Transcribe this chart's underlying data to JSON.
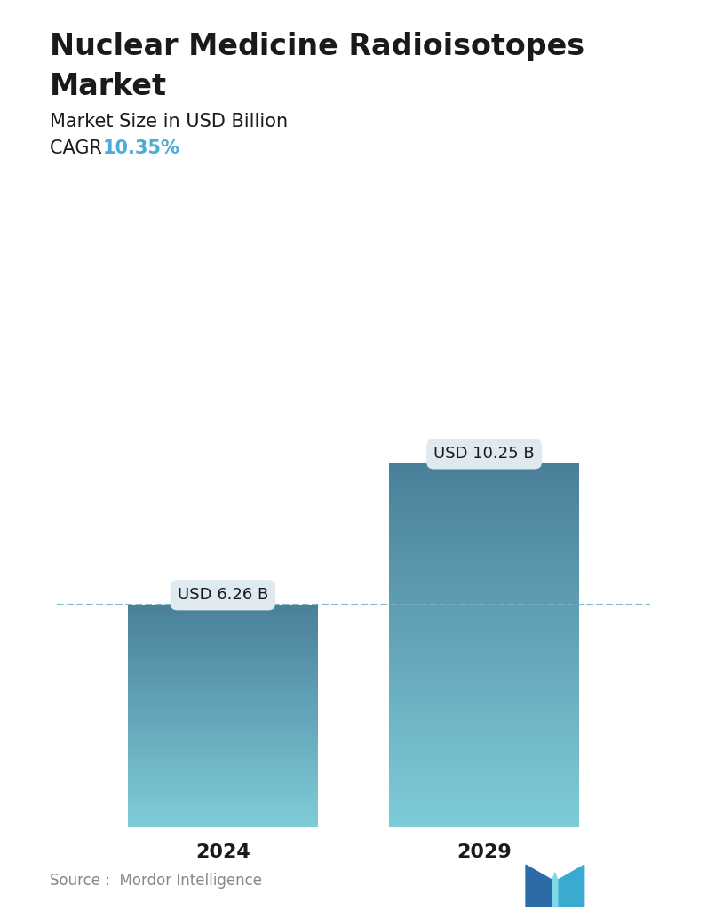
{
  "title_line1": "Nuclear Medicine Radioisotopes",
  "title_line2": "Market",
  "subtitle": "Market Size in USD Billion",
  "cagr_label": "CAGR  ",
  "cagr_value": "10.35%",
  "cagr_color": "#4BACD6",
  "source_text": "Source :  Mordor Intelligence",
  "categories": [
    "2024",
    "2029"
  ],
  "values": [
    6.26,
    10.25
  ],
  "labels": [
    "USD 6.26 B",
    "USD 10.25 B"
  ],
  "bar_color_top": "#4A7F9A",
  "bar_color_bottom": "#7ECCD8",
  "dashed_line_color": "#7AAFC4",
  "background_color": "#FFFFFF",
  "title_fontsize": 24,
  "subtitle_fontsize": 15,
  "cagr_fontsize": 15,
  "label_fontsize": 13,
  "tick_fontsize": 16,
  "source_fontsize": 12,
  "ymax": 13.5,
  "tooltip_bg": "#DEE9F0",
  "tooltip_text_color": "#1a1a1a"
}
